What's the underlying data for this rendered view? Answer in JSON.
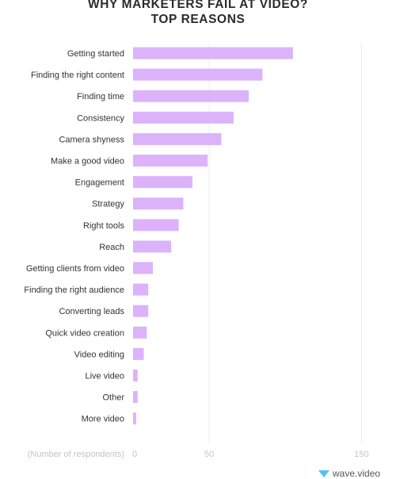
{
  "chart_data": {
    "type": "bar",
    "orientation": "horizontal",
    "title_line1": "WHY MARKETERS FAIL AT VIDEO?",
    "title_line2": "TOP REASONS",
    "xlabel": "(Number of respondents)",
    "xlim": [
      0,
      155
    ],
    "xticks": [
      0,
      50,
      150
    ],
    "grid": true,
    "bar_color": "#dcb3fb",
    "categories": [
      "Getting started",
      "Finding the right content",
      "Finding time",
      "Consistency",
      "Camera shyness",
      "Make a good video",
      "Engagement",
      "Strategy",
      "Right tools",
      "Reach",
      "Getting clients from video",
      "Finding the right audience",
      "Converting leads",
      "Quick video creation",
      "Video editing",
      "Live video",
      "Other",
      "More video"
    ],
    "values": [
      105,
      85,
      76,
      66,
      58,
      49,
      39,
      33,
      30,
      25,
      13,
      10,
      10,
      9,
      7,
      3,
      3,
      2
    ]
  },
  "watermark": "wave.video"
}
